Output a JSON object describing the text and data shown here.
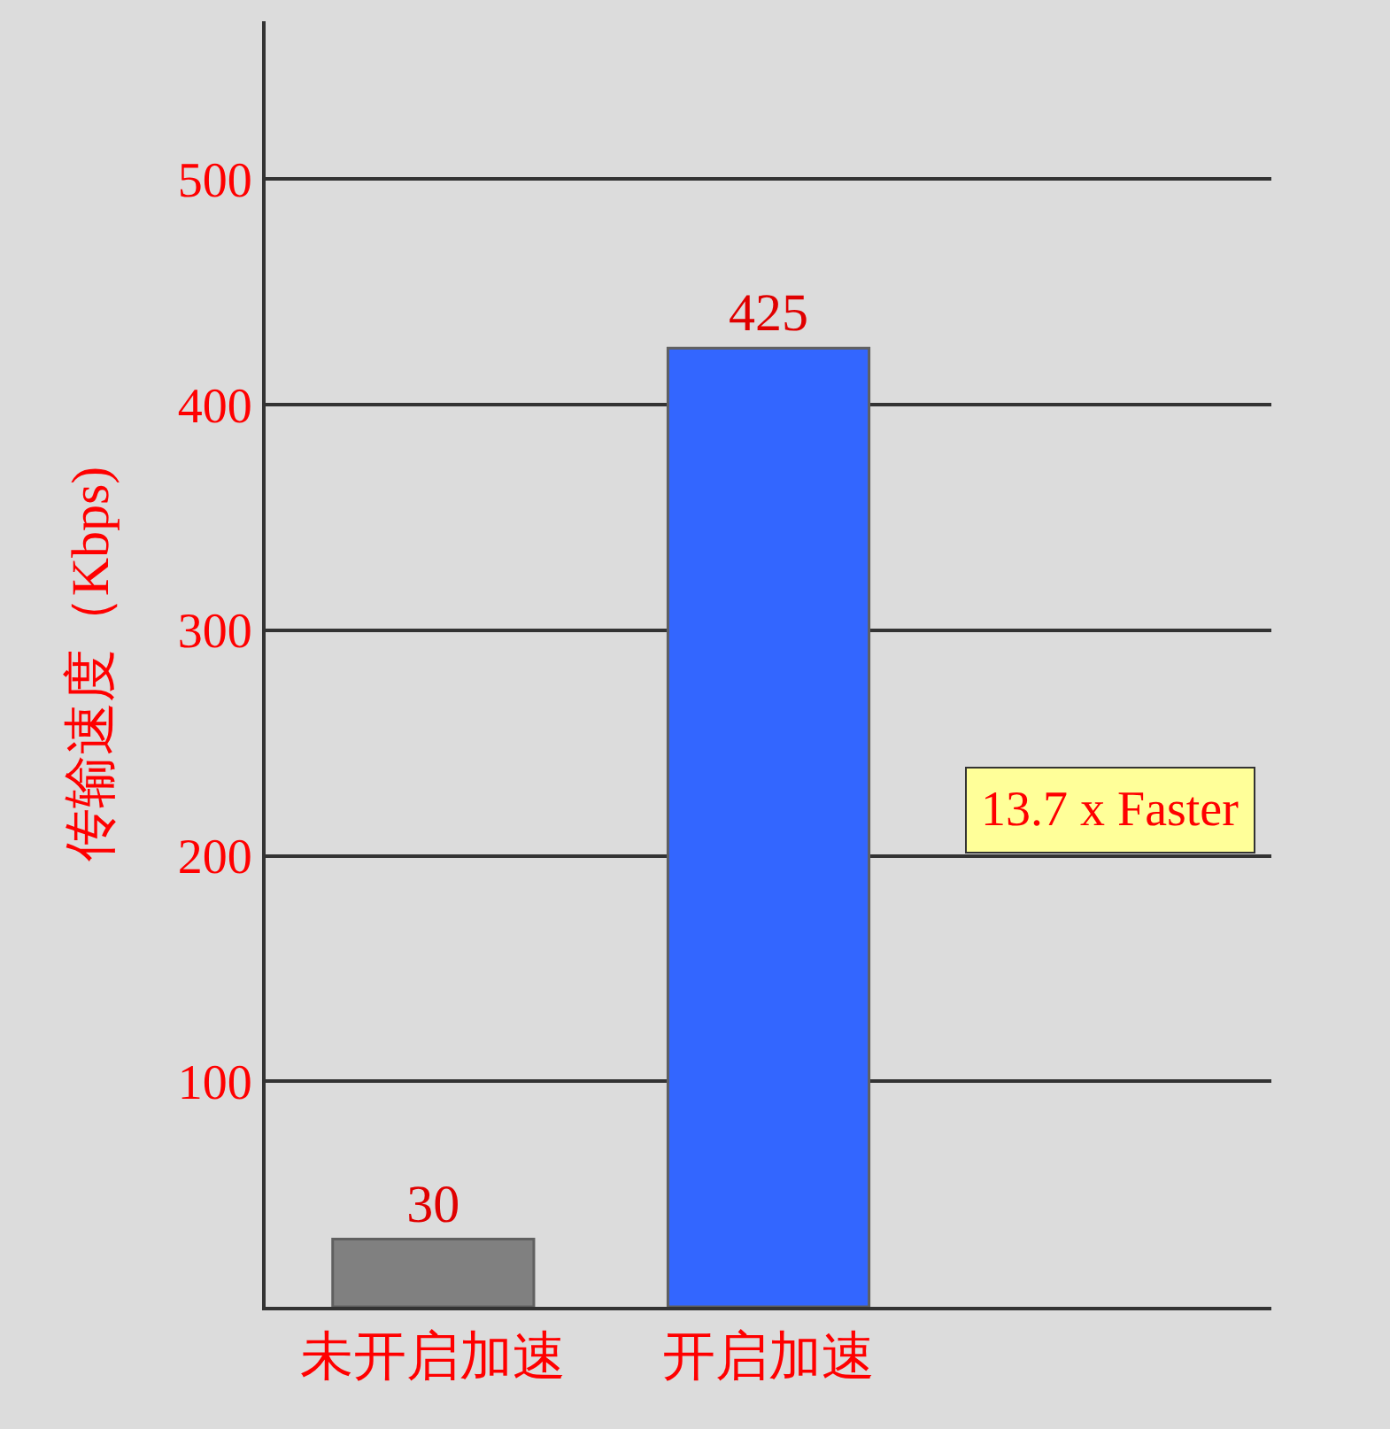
{
  "chart_data": {
    "type": "bar",
    "ylabel": "传输速度（Kbps)",
    "categories": [
      "未开启加速",
      "开启加速"
    ],
    "values": [
      30,
      425
    ],
    "colors": [
      "#808080",
      "#3366ff"
    ],
    "ylim": [
      0,
      570
    ],
    "yticks": [
      100,
      200,
      300,
      400,
      500
    ],
    "grid": "y",
    "data_labels": true,
    "annotations": [
      "13.7 x Faster"
    ]
  }
}
